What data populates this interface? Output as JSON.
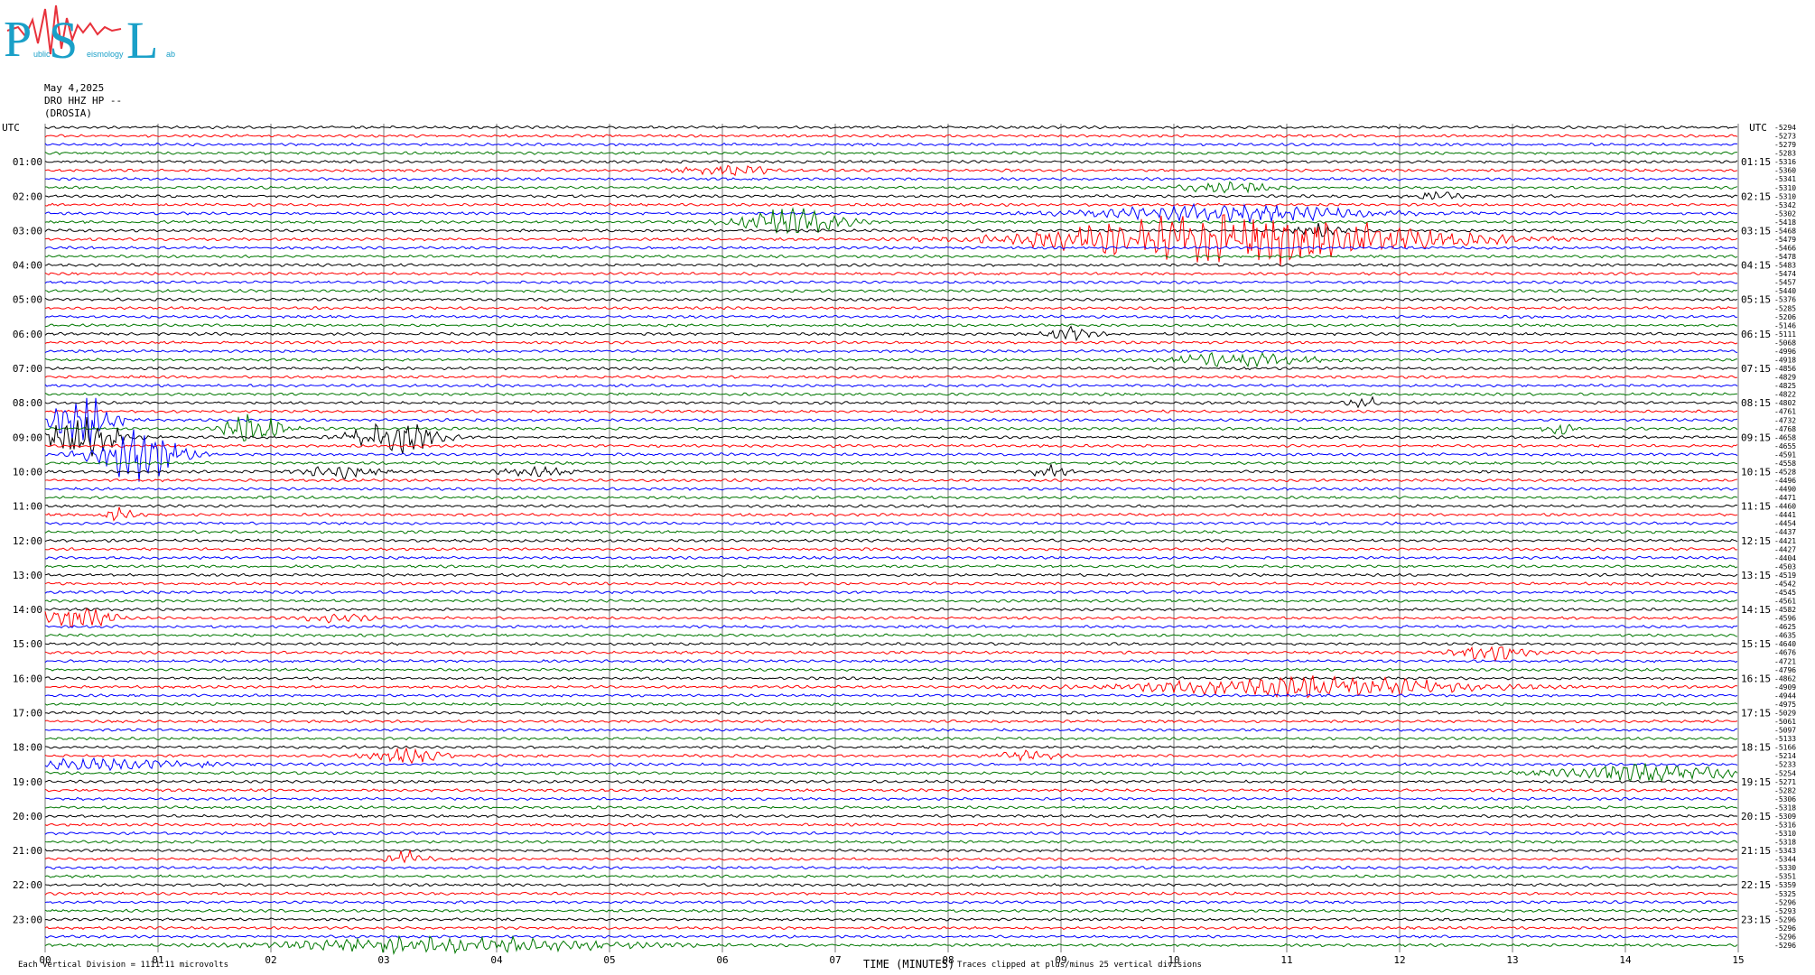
{
  "logo": {
    "big_letters": [
      "P",
      "S",
      "L"
    ],
    "small_parts": [
      "ublic",
      "eismology",
      "ab"
    ]
  },
  "header": {
    "date": "May 4,2025",
    "station": "DRO HHZ HP --",
    "location": "(DROSIA)"
  },
  "chart_data": {
    "type": "line",
    "title": "",
    "xlabel": "TIME (MINUTES)",
    "ylabel": "UTC",
    "xlim": [
      0,
      15
    ],
    "x_ticks": [
      "00",
      "01",
      "02",
      "03",
      "04",
      "05",
      "06",
      "07",
      "08",
      "09",
      "10",
      "11",
      "12",
      "13",
      "14",
      "15"
    ],
    "left_axis_label": "UTC",
    "right_axis_label": "UTC",
    "left_hour_labels": [
      "01:00",
      "02:00",
      "03:00",
      "04:00",
      "05:00",
      "06:00",
      "07:00",
      "08:00",
      "09:00",
      "10:00",
      "11:00",
      "12:00",
      "13:00",
      "14:00",
      "15:00",
      "16:00",
      "17:00",
      "18:00",
      "19:00",
      "20:00",
      "21:00",
      "22:00",
      "23:00"
    ],
    "right_hour_labels": [
      "01:15",
      "02:15",
      "03:15",
      "04:15",
      "05:15",
      "06:15",
      "07:15",
      "08:15",
      "09:15",
      "10:15",
      "11:15",
      "12:15",
      "13:15",
      "14:15",
      "15:15",
      "16:15",
      "17:15",
      "18:15",
      "19:15",
      "20:15",
      "21:15",
      "22:15",
      "23:15"
    ],
    "trace_count": 96,
    "trace_minutes": 15,
    "trace_colors": [
      "#000000",
      "#ff0000",
      "#0000ff",
      "#007700"
    ],
    "trace_offsets": [
      "-5294",
      "-5273",
      "-5279",
      "-5283",
      "-5316",
      "-5360",
      "-5341",
      "-5310",
      "-5310",
      "-5342",
      "-5302",
      "-5418",
      "-5468",
      "-5479",
      "-5466",
      "-5478",
      "-5483",
      "-5474",
      "-5457",
      "-5440",
      "-5376",
      "-5285",
      "-5206",
      "-5146",
      "-5111",
      "-5068",
      "-4996",
      "-4918",
      "-4856",
      "-4829",
      "-4825",
      "-4822",
      "-4802",
      "-4761",
      "-4732",
      "-4768",
      "-4658",
      "-4655",
      "-4591",
      "-4558",
      "-4528",
      "-4496",
      "-4490",
      "-4471",
      "-4460",
      "-4441",
      "-4454",
      "-4437",
      "-4421",
      "-4427",
      "-4404",
      "-4503",
      "-4519",
      "-4542",
      "-4545",
      "-4561",
      "-4582",
      "-4596",
      "-4625",
      "-4635",
      "-4640",
      "-4676",
      "-4721",
      "-4796",
      "-4862",
      "-4909",
      "-4944",
      "-4975",
      "-5029",
      "-5061",
      "-5097",
      "-5133",
      "-5166",
      "-5214",
      "-5233",
      "-5254",
      "-5271",
      "-5282",
      "-5306",
      "-5318",
      "-5309",
      "-5316",
      "-5310",
      "-5318",
      "-5343",
      "-5344",
      "-5330",
      "-5351",
      "-5359",
      "-5325",
      "-5296",
      "-5293",
      "-5296",
      "-5296",
      "-5296",
      "-5296"
    ],
    "events": [
      {
        "line": 5,
        "minute": 6.05,
        "width": 0.35,
        "amp": 1.6
      },
      {
        "line": 7,
        "minute": 10.5,
        "width": 0.35,
        "amp": 2.0
      },
      {
        "line": 8,
        "minute": 12.3,
        "width": 0.2,
        "amp": 1.2
      },
      {
        "line": 10,
        "minute": 10.5,
        "width": 1.2,
        "amp": 2.5
      },
      {
        "line": 11,
        "minute": 6.6,
        "width": 0.45,
        "amp": 4.0
      },
      {
        "line": 12,
        "minute": 11.3,
        "width": 0.2,
        "amp": 2.0
      },
      {
        "line": 13,
        "minute": 10.6,
        "width": 1.6,
        "amp": 8.0
      },
      {
        "line": 24,
        "minute": 9.1,
        "width": 0.2,
        "amp": 2.0
      },
      {
        "line": 27,
        "minute": 10.6,
        "width": 0.6,
        "amp": 2.0
      },
      {
        "line": 32,
        "minute": 11.7,
        "width": 0.15,
        "amp": 1.5
      },
      {
        "line": 34,
        "minute": 0.35,
        "width": 0.25,
        "amp": 9.0
      },
      {
        "line": 35,
        "minute": 13.4,
        "width": 0.1,
        "amp": 3.5
      },
      {
        "line": 35,
        "minute": 1.85,
        "width": 0.25,
        "amp": 5.0
      },
      {
        "line": 36,
        "minute": 0.35,
        "width": 0.35,
        "amp": 6.0
      },
      {
        "line": 36,
        "minute": 3.1,
        "width": 0.35,
        "amp": 5.0
      },
      {
        "line": 38,
        "minute": 0.8,
        "width": 0.35,
        "amp": 9.0
      },
      {
        "line": 40,
        "minute": 2.6,
        "width": 0.3,
        "amp": 2.0
      },
      {
        "line": 40,
        "minute": 8.9,
        "width": 0.15,
        "amp": 2.0
      },
      {
        "line": 40,
        "minute": 4.3,
        "width": 0.3,
        "amp": 1.5
      },
      {
        "line": 45,
        "minute": 0.65,
        "width": 0.15,
        "amp": 2.0
      },
      {
        "line": 57,
        "minute": 0.25,
        "width": 0.3,
        "amp": 4.0
      },
      {
        "line": 57,
        "minute": 2.6,
        "width": 0.3,
        "amp": 1.2
      },
      {
        "line": 61,
        "minute": 12.8,
        "width": 0.3,
        "amp": 2.5
      },
      {
        "line": 65,
        "minute": 11.2,
        "width": 1.4,
        "amp": 3.0
      },
      {
        "line": 73,
        "minute": 3.2,
        "width": 0.3,
        "amp": 2.0
      },
      {
        "line": 73,
        "minute": 8.7,
        "width": 0.3,
        "amp": 1.2
      },
      {
        "line": 74,
        "minute": 0.5,
        "width": 0.9,
        "amp": 1.5
      },
      {
        "line": 75,
        "minute": 14.2,
        "width": 0.8,
        "amp": 2.5
      },
      {
        "line": 85,
        "minute": 3.2,
        "width": 0.15,
        "amp": 3.0
      },
      {
        "line": 95,
        "minute": 3.6,
        "width": 1.4,
        "amp": 2.5
      }
    ]
  },
  "footer": {
    "division_note": "Each Vertical Division = 1111.11 microvolts",
    "clip_note": "Traces clipped at plus/minus 25 vertical divisions"
  }
}
